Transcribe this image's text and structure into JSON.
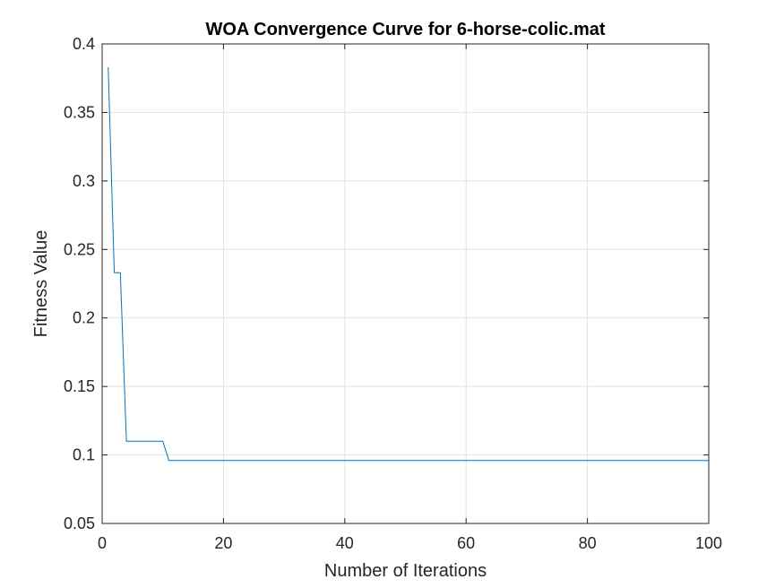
{
  "chart_data": {
    "type": "line",
    "title": "WOA Convergence Curve for 6-horse-colic.mat",
    "xlabel": "Number of Iterations",
    "ylabel": "Fitness Value",
    "xlim": [
      0,
      100
    ],
    "ylim": [
      0.05,
      0.4
    ],
    "xticks": [
      0,
      20,
      40,
      60,
      80,
      100
    ],
    "xtick_labels": [
      "0",
      "20",
      "40",
      "60",
      "80",
      "100"
    ],
    "yticks": [
      0.05,
      0.1,
      0.15,
      0.2,
      0.25,
      0.3,
      0.35,
      0.4
    ],
    "ytick_labels": [
      "0.05",
      "0.1",
      "0.15",
      "0.2",
      "0.25",
      "0.3",
      "0.35",
      "0.4"
    ],
    "grid": true,
    "series": [
      {
        "color": "#0072BD",
        "x": [
          1,
          2,
          3,
          4,
          5,
          6,
          7,
          8,
          9,
          10,
          11,
          12,
          13,
          14,
          15,
          16,
          17,
          18,
          19,
          20,
          21,
          22,
          23,
          24,
          25,
          26,
          27,
          28,
          29,
          30,
          31,
          32,
          33,
          34,
          35,
          36,
          37,
          38,
          39,
          40,
          41,
          42,
          43,
          44,
          45,
          46,
          47,
          48,
          49,
          50,
          51,
          52,
          53,
          54,
          55,
          56,
          57,
          58,
          59,
          60,
          61,
          62,
          63,
          64,
          65,
          66,
          67,
          68,
          69,
          70,
          71,
          72,
          73,
          74,
          75,
          76,
          77,
          78,
          79,
          80,
          81,
          82,
          83,
          84,
          85,
          86,
          87,
          88,
          89,
          90,
          91,
          92,
          93,
          94,
          95,
          96,
          97,
          98,
          99,
          100
        ],
        "y": [
          0.383,
          0.233,
          0.233,
          0.11,
          0.11,
          0.11,
          0.11,
          0.11,
          0.11,
          0.11,
          0.096,
          0.096,
          0.096,
          0.096,
          0.096,
          0.096,
          0.096,
          0.096,
          0.096,
          0.096,
          0.096,
          0.096,
          0.096,
          0.096,
          0.096,
          0.096,
          0.096,
          0.096,
          0.096,
          0.096,
          0.096,
          0.096,
          0.096,
          0.096,
          0.096,
          0.096,
          0.096,
          0.096,
          0.096,
          0.096,
          0.096,
          0.096,
          0.096,
          0.096,
          0.096,
          0.096,
          0.096,
          0.096,
          0.096,
          0.096,
          0.096,
          0.096,
          0.096,
          0.096,
          0.096,
          0.096,
          0.096,
          0.096,
          0.096,
          0.096,
          0.096,
          0.096,
          0.096,
          0.096,
          0.096,
          0.096,
          0.096,
          0.096,
          0.096,
          0.096,
          0.096,
          0.096,
          0.096,
          0.096,
          0.096,
          0.096,
          0.096,
          0.096,
          0.096,
          0.096,
          0.096,
          0.096,
          0.096,
          0.096,
          0.096,
          0.096,
          0.096,
          0.096,
          0.096,
          0.096,
          0.096,
          0.096,
          0.096,
          0.096,
          0.096,
          0.096,
          0.096,
          0.096,
          0.096,
          0.096
        ]
      }
    ]
  },
  "colors": {
    "line": "#0072BD",
    "grid": "#e2e2e2",
    "axes": "#262626",
    "background": "#ffffff"
  }
}
